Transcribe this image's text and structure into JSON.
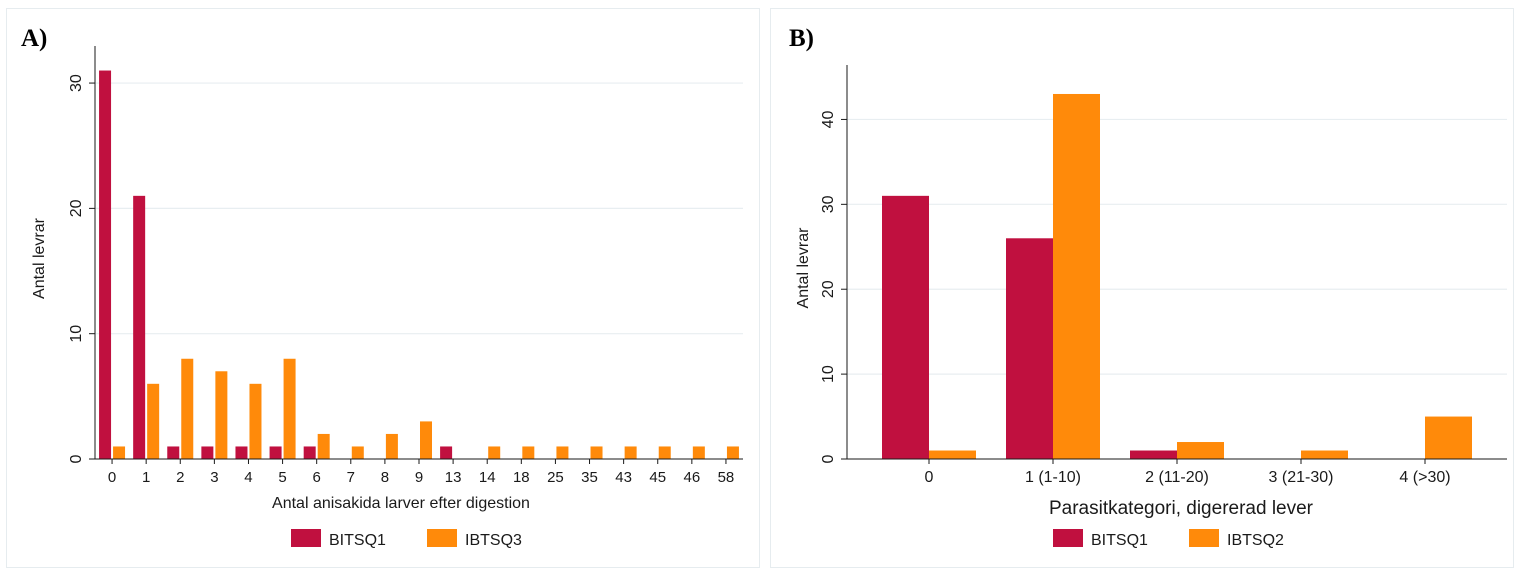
{
  "chart_data": [
    {
      "panel_label": "A)",
      "type": "bar",
      "categories": [
        "0",
        "1",
        "2",
        "3",
        "4",
        "5",
        "6",
        "7",
        "8",
        "9",
        "13",
        "14",
        "18",
        "25",
        "35",
        "43",
        "45",
        "46",
        "58"
      ],
      "series": [
        {
          "name": "BITSQ1",
          "color": "#c0103f",
          "values": [
            31,
            21,
            1,
            1,
            1,
            1,
            1,
            0,
            0,
            0,
            1,
            0,
            0,
            0,
            0,
            0,
            0,
            0,
            0
          ]
        },
        {
          "name": "IBTSQ3",
          "color": "#ff8a0a",
          "values": [
            1,
            6,
            8,
            7,
            6,
            8,
            2,
            1,
            2,
            3,
            0,
            1,
            1,
            1,
            1,
            1,
            1,
            1,
            1
          ]
        }
      ],
      "xlabel": "Antal anisakida larver efter digestion",
      "ylabel": "Antal levrar",
      "ylim": [
        0,
        32
      ],
      "yticks": [
        0,
        10,
        20,
        30
      ],
      "grid": true,
      "legend_position": "bottom"
    },
    {
      "panel_label": "B)",
      "type": "bar",
      "categories": [
        "0",
        "1 (1-10)",
        "2 (11-20)",
        "3 (21-30)",
        "4 (>30)"
      ],
      "series": [
        {
          "name": "BITSQ1",
          "color": "#c0103f",
          "values": [
            31,
            26,
            1,
            0,
            0
          ]
        },
        {
          "name": "IBTSQ2",
          "color": "#ff8a0a",
          "values": [
            1,
            43,
            2,
            1,
            5
          ]
        }
      ],
      "xlabel": "Parasitkategori, digererad lever",
      "ylabel": "Antal levrar",
      "ylim": [
        0,
        45
      ],
      "yticks": [
        0,
        10,
        20,
        30,
        40
      ],
      "grid": true,
      "legend_position": "bottom"
    }
  ]
}
